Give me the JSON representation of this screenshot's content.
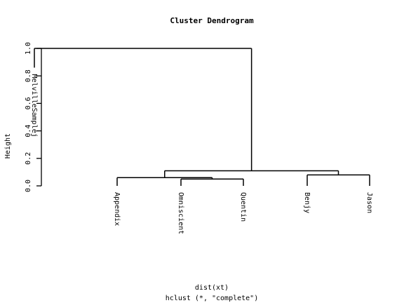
{
  "chart_data": {
    "type": "dendrogram",
    "title": "Cluster Dendrogram",
    "ylabel": "Height",
    "xlabel_line1": "dist(xt)",
    "xlabel_line2": "hclust (*, \"complete\")",
    "ylim": [
      0,
      1.0
    ],
    "y_ticks": [
      0.0,
      0.2,
      0.4,
      0.6,
      0.8,
      1.0
    ],
    "y_tick_labels": [
      "0.0",
      "0.2",
      "0.4",
      "0.6",
      "0.8",
      "1.0"
    ],
    "leaves": [
      "MelvilleSamplej",
      "Appendix",
      "Omniscient",
      "Quentin",
      "Benjy",
      "Jason"
    ],
    "leaf_heights": [
      0.86,
      0.0,
      0.0,
      0.0,
      0.0,
      0.0
    ],
    "merges": [
      {
        "left": "Omniscient",
        "right": "Quentin",
        "height": 0.05
      },
      {
        "left": "Appendix",
        "right": "Omniscient+Quentin",
        "height": 0.06
      },
      {
        "left": "Benjy",
        "right": "Jason",
        "height": 0.08
      },
      {
        "left": "Appendix+Omniscient+Quentin",
        "right": "Benjy+Jason",
        "height": 0.11
      },
      {
        "left": "MelvilleSamplej",
        "right": "Appendix+Omniscient+Quentin+Benjy+Jason",
        "height": 1.0
      }
    ]
  }
}
